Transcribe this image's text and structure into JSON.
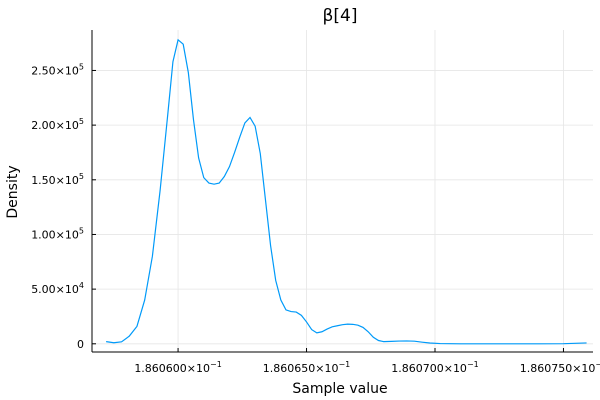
{
  "chart_data": {
    "type": "line",
    "title": "β[4]",
    "xlabel": "Sample value",
    "ylabel": "Density",
    "xlim": [
      0.18605665,
      0.18607615
    ],
    "ylim": [
      -7500,
      287000
    ],
    "grid": true,
    "legend": "none",
    "colors": {
      "series": "#009af9",
      "axis": "#000000",
      "grid": "#e6e6e6"
    },
    "x_ticks": [
      {
        "value": 0.18606,
        "label": "1.860600×10"
      },
      {
        "value": 0.186065,
        "label": "1.860650×10"
      },
      {
        "value": 0.18607,
        "label": "1.860700×10"
      },
      {
        "value": 0.186075,
        "label": "1.860750×10"
      }
    ],
    "x_tick_exponent": "−1",
    "y_ticks": [
      {
        "value": 0,
        "mantissa": "0",
        "exponent": ""
      },
      {
        "value": 50000,
        "mantissa": "5.00×10",
        "exponent": "4"
      },
      {
        "value": 100000,
        "mantissa": "1.00×10",
        "exponent": "5"
      },
      {
        "value": 150000,
        "mantissa": "1.50×10",
        "exponent": "5"
      },
      {
        "value": 200000,
        "mantissa": "2.00×10",
        "exponent": "5"
      },
      {
        "value": 250000,
        "mantissa": "2.50×10",
        "exponent": "5"
      }
    ],
    "series": [
      {
        "x": [
          0.1860572,
          0.1860575,
          0.1860578,
          0.1860581,
          0.1860584,
          0.1860587,
          0.186059,
          0.1860593,
          0.1860596,
          0.1860598,
          0.18606,
          0.1860602,
          0.1860604,
          0.1860606,
          0.1860608,
          0.186061,
          0.1860612,
          0.1860614,
          0.1860616,
          0.1860618,
          0.186062,
          0.1860622,
          0.1860624,
          0.1860626,
          0.1860628,
          0.186063,
          0.1860632,
          0.1860634,
          0.1860636,
          0.1860638,
          0.186064,
          0.1860642,
          0.1860644,
          0.1860646,
          0.1860648,
          0.186065,
          0.1860652,
          0.1860654,
          0.1860656,
          0.1860658,
          0.186066,
          0.1860662,
          0.1860664,
          0.1860666,
          0.1860668,
          0.186067,
          0.1860672,
          0.1860674,
          0.1860676,
          0.1860678,
          0.186068,
          0.1860683,
          0.1860686,
          0.1860689,
          0.1860692,
          0.1860695,
          0.1860698,
          0.1860702,
          0.186071,
          0.186072,
          0.186073,
          0.186074,
          0.186075,
          0.1860759
        ],
        "y": [
          2000,
          1000,
          1800,
          7000,
          16000,
          40000,
          80000,
          140000,
          210000,
          258000,
          278000,
          274000,
          248000,
          205000,
          170000,
          152000,
          147000,
          146000,
          147000,
          153000,
          162000,
          175000,
          189000,
          202000,
          207000,
          199000,
          174000,
          132000,
          90000,
          58000,
          40000,
          31000,
          29500,
          29000,
          26000,
          20000,
          13000,
          10000,
          11000,
          13500,
          15500,
          16500,
          17500,
          18000,
          17800,
          17000,
          15000,
          11000,
          6000,
          3000,
          2000,
          2200,
          2500,
          2600,
          2400,
          1500,
          700,
          200,
          0,
          0,
          0,
          0,
          100,
          800
        ]
      }
    ]
  }
}
